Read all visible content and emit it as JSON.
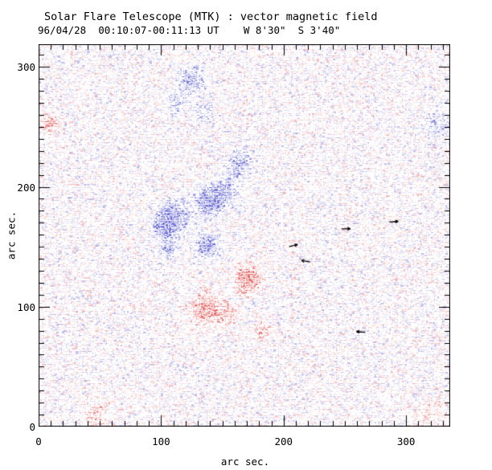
{
  "header": {
    "title": "Solar Flare Telescope (MTK) : vector magnetic field",
    "subtitle": "96/04/28  00:10:07-00:11:13 UT    W 8'30\"  S 3'40\""
  },
  "chart_data": {
    "type": "heatmap",
    "title": "Solar Flare Telescope (MTK) : vector magnetic field",
    "subtitle": "96/04/28  00:10:07-00:11:13 UT    W 8'30\"  S 3'40\"",
    "xlabel": "arc sec.",
    "ylabel": "arc sec.",
    "xlim": [
      0,
      336
    ],
    "ylim": [
      0,
      319
    ],
    "xticks": [
      0,
      100,
      200,
      300
    ],
    "yticks": [
      0,
      100,
      200,
      300
    ],
    "minor_tick_step": 10,
    "grid": false,
    "legend": null,
    "colors": {
      "positive_red": "#e76060",
      "negative_blue": "#6868d6",
      "frame": "#000000",
      "background": "#ffffff",
      "text": "#000000"
    },
    "polarity_blobs": [
      {
        "polarity": "negative",
        "x": 140,
        "y": 187,
        "sigma": 7.0,
        "amplitude": 1.5
      },
      {
        "polarity": "negative",
        "x": 110,
        "y": 175,
        "sigma": 8.0,
        "amplitude": 1.2
      },
      {
        "polarity": "negative",
        "x": 103,
        "y": 165,
        "sigma": 6.0,
        "amplitude": 1.0
      },
      {
        "polarity": "negative",
        "x": 106,
        "y": 148,
        "sigma": 4.5,
        "amplitude": 0.9
      },
      {
        "polarity": "negative",
        "x": 138,
        "y": 150,
        "sigma": 6.0,
        "amplitude": 1.0
      },
      {
        "polarity": "negative",
        "x": 152,
        "y": 196,
        "sigma": 6.5,
        "amplitude": 0.9
      },
      {
        "polarity": "negative",
        "x": 162,
        "y": 215,
        "sigma": 6.0,
        "amplitude": 0.6
      },
      {
        "polarity": "negative",
        "x": 165,
        "y": 224,
        "sigma": 6.0,
        "amplitude": 0.4
      },
      {
        "polarity": "negative",
        "x": 125,
        "y": 289,
        "sigma": 6.5,
        "amplitude": 0.8
      },
      {
        "polarity": "negative",
        "x": 113,
        "y": 270,
        "sigma": 6.0,
        "amplitude": 0.5
      },
      {
        "polarity": "negative",
        "x": 134,
        "y": 262,
        "sigma": 6.0,
        "amplitude": 0.4
      },
      {
        "polarity": "negative",
        "x": 326,
        "y": 252,
        "sigma": 8.0,
        "amplitude": 0.4
      },
      {
        "polarity": "positive",
        "x": 171,
        "y": 123,
        "sigma": 6.5,
        "amplitude": 1.4
      },
      {
        "polarity": "positive",
        "x": 136,
        "y": 98,
        "sigma": 8.0,
        "amplitude": 0.9
      },
      {
        "polarity": "positive",
        "x": 154,
        "y": 93,
        "sigma": 6.0,
        "amplitude": 0.7
      },
      {
        "polarity": "positive",
        "x": 182,
        "y": 80,
        "sigma": 4.5,
        "amplitude": 0.6
      },
      {
        "polarity": "positive",
        "x": 10,
        "y": 252,
        "sigma": 4.0,
        "amplitude": 1.0
      },
      {
        "polarity": "positive",
        "x": 47,
        "y": 9,
        "sigma": 8.0,
        "amplitude": 0.45
      },
      {
        "polarity": "positive",
        "x": 320,
        "y": 10,
        "sigma": 9.0,
        "amplitude": 0.3
      }
    ],
    "vector_arrows": [
      {
        "x": 290,
        "y": 171,
        "angle_deg": -5
      },
      {
        "x": 251,
        "y": 165,
        "angle_deg": 0
      },
      {
        "x": 208,
        "y": 151,
        "angle_deg": -15
      },
      {
        "x": 218,
        "y": 138,
        "angle_deg": 190
      },
      {
        "x": 263,
        "y": 79,
        "angle_deg": 185
      }
    ],
    "noise": {
      "seed": 987654321,
      "blue_red_bias": -0.015,
      "threshold": 0.13
    }
  }
}
